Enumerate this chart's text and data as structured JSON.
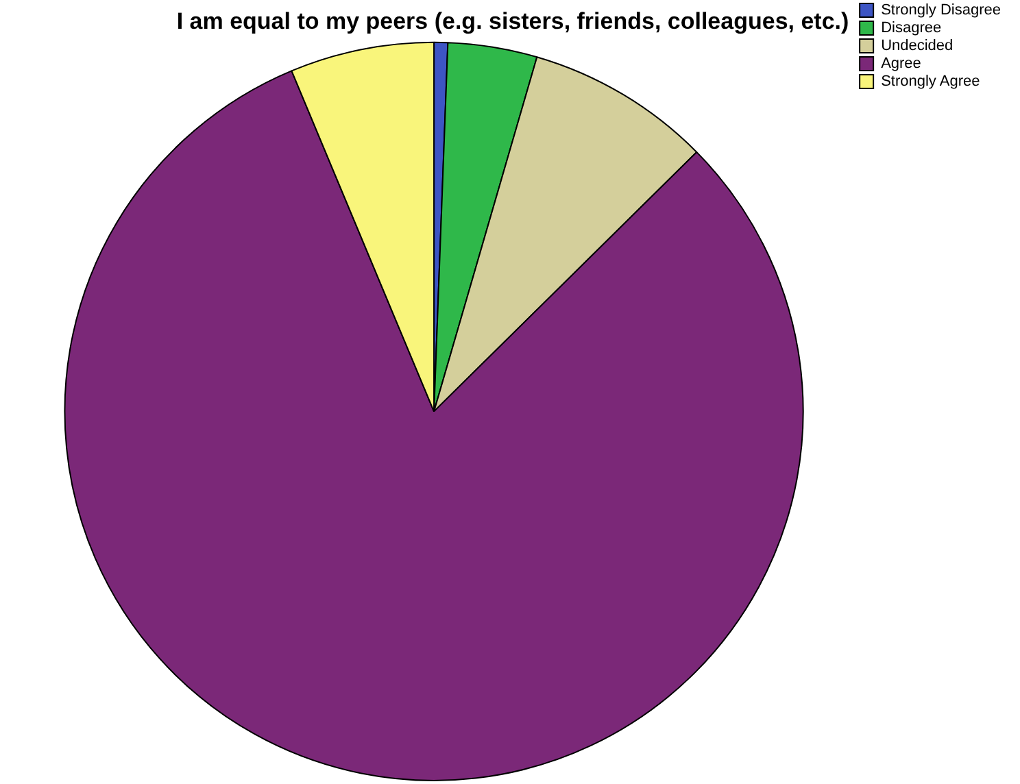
{
  "chart_data": {
    "type": "pie",
    "title": "I am equal to my peers (e.g. sisters, friends, colleagues, etc.)",
    "categories": [
      "Strongly Disagree",
      "Disagree",
      "Undecided",
      "Agree",
      "Strongly Agree"
    ],
    "values": [
      0.6,
      3.9,
      8.1,
      81.1,
      6.3
    ],
    "colors": [
      "#3d55c4",
      "#2fb84a",
      "#d4cf9b",
      "#7b2878",
      "#f9f57b"
    ],
    "legend": "top right"
  }
}
